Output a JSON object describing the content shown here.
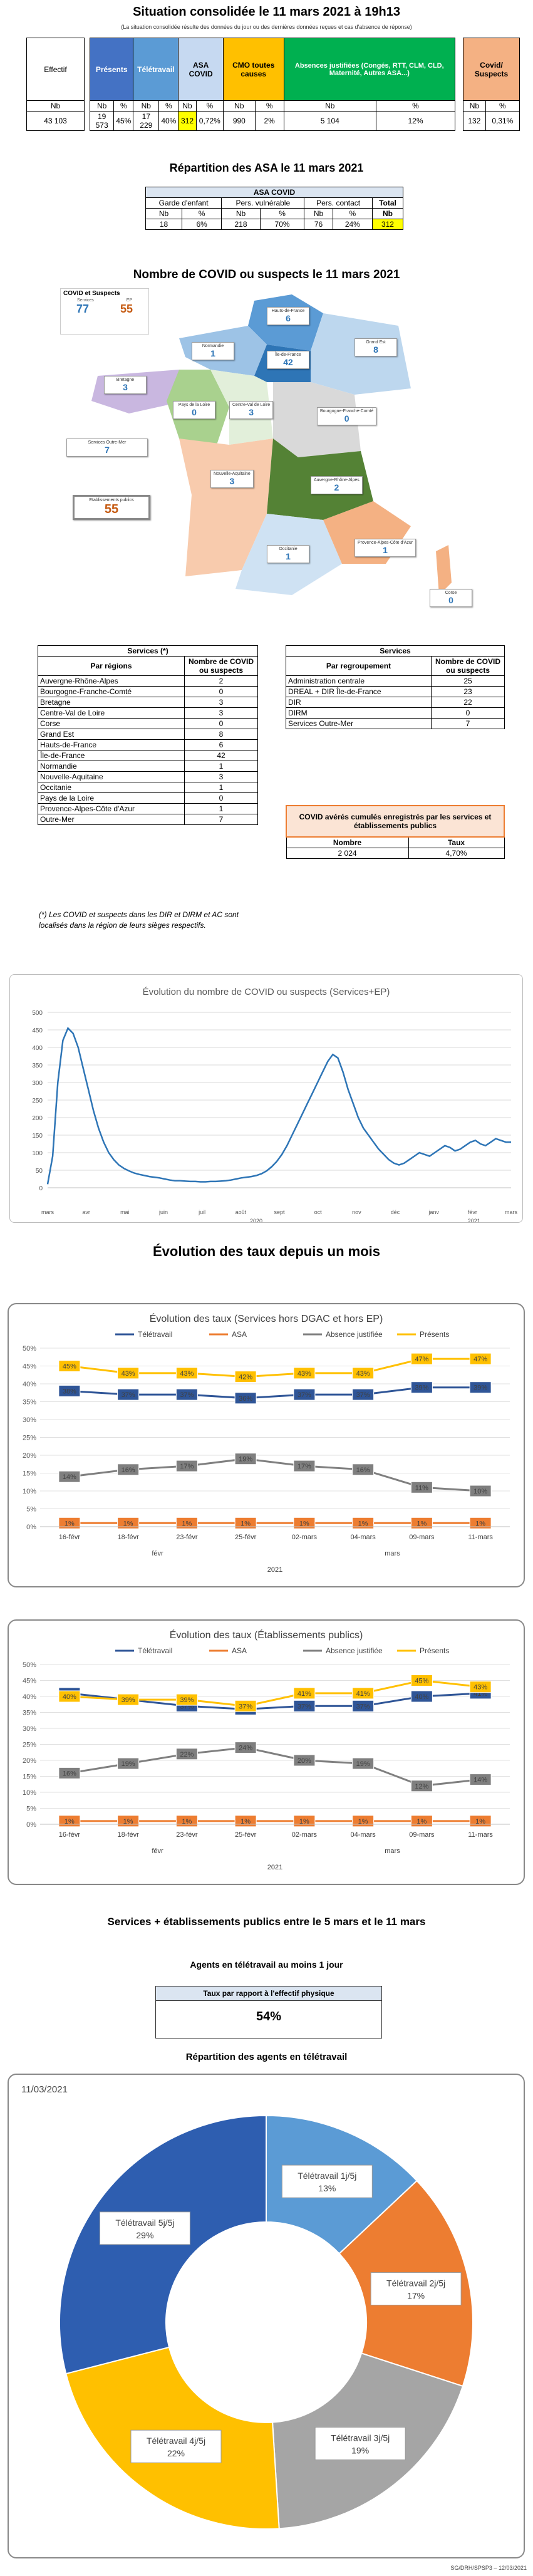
{
  "header": {
    "title": "Situation consolidée le 11 mars 2021 à 19h13",
    "note": "(La situation consolidée résulte des données du jour ou des dernières données reçues et cas d'absence de réponse)"
  },
  "summary": {
    "cols": [
      "Effectif",
      "Présents",
      "Télétravail",
      "ASA COVID",
      "CMO toutes causes",
      "Absences justifiées (Congés, RTT, CLM, CLD, Maternité, Autres ASA...)",
      "Covid/ Suspects"
    ],
    "sub": [
      "Nb",
      "Nb",
      "%",
      "Nb",
      "%",
      "Nb",
      "%",
      "Nb",
      "%",
      "Nb",
      "%",
      "Nb",
      "%"
    ],
    "vals": [
      "43 103",
      "19 573",
      "45%",
      "17 229",
      "40%",
      "312",
      "0,72%",
      "990",
      "2%",
      "5 104",
      "12%",
      "132",
      "0,31%"
    ],
    "colors": {
      "presents": "#4472c4",
      "teletravail": "#5b9bd5",
      "asa": "#c6d9f1",
      "cmo": "#ffc000",
      "absences": "#00b050",
      "covid": "#f4b183",
      "highlight": "#ffff00"
    }
  },
  "asa": {
    "title": "Répartition des ASA le 11 mars 2021",
    "header": "ASA COVID",
    "cols": [
      "Garde d'enfant",
      "Pers. vulnérable",
      "Pers. contact",
      "Total"
    ],
    "sub": [
      "Nb",
      "%",
      "Nb",
      "%",
      "Nb",
      "%",
      "Nb"
    ],
    "vals": [
      "18",
      "6%",
      "218",
      "70%",
      "76",
      "24%",
      "312"
    ]
  },
  "map": {
    "title": "Nombre de COVID ou suspects le 11 mars 2021",
    "legend_title": "COVID et Suspects",
    "legend_sub": [
      "Services",
      "EP"
    ],
    "legend_vals": [
      "77",
      "55"
    ],
    "regions": [
      {
        "name": "Hauts-de-France",
        "value": "6"
      },
      {
        "name": "Normandie",
        "value": "1"
      },
      {
        "name": "Île-de-France",
        "value": "42"
      },
      {
        "name": "Grand Est",
        "value": "8"
      },
      {
        "name": "Bretagne",
        "value": "3"
      },
      {
        "name": "Pays de la Loire",
        "value": "0"
      },
      {
        "name": "Centre-Val de Loire",
        "value": "3"
      },
      {
        "name": "Bourgogne-Franche-Comté",
        "value": "0"
      },
      {
        "name": "Nouvelle-Aquitaine",
        "value": "3"
      },
      {
        "name": "Auvergne-Rhône-Alpes",
        "value": "2"
      },
      {
        "name": "Occitanie",
        "value": "1"
      },
      {
        "name": "Provence-Alpes-Côte d'Azur",
        "value": "1"
      },
      {
        "name": "Corse",
        "value": "0"
      },
      {
        "name": "Services Outre-Mer",
        "value": "7"
      },
      {
        "name": "Etablissements publics",
        "value": "55"
      }
    ]
  },
  "services_regions": {
    "title": "Services (*)",
    "col1": "Par régions",
    "col2": "Nombre de COVID ou suspects",
    "rows": [
      [
        "Auvergne-Rhône-Alpes",
        "2"
      ],
      [
        "Bourgogne-Franche-Comté",
        "0"
      ],
      [
        "Bretagne",
        "3"
      ],
      [
        "Centre-Val de Loire",
        "3"
      ],
      [
        "Corse",
        "0"
      ],
      [
        "Grand Est",
        "8"
      ],
      [
        "Hauts-de-France",
        "6"
      ],
      [
        "Île-de-France",
        "42"
      ],
      [
        "Normandie",
        "1"
      ],
      [
        "Nouvelle-Aquitaine",
        "3"
      ],
      [
        "Occitanie",
        "1"
      ],
      [
        "Pays de la Loire",
        "0"
      ],
      [
        "Provence-Alpes-Côte d'Azur",
        "1"
      ],
      [
        "Outre-Mer",
        "7"
      ]
    ],
    "footnote": "(*) Les COVID et suspects dans les DIR et DIRM et AC sont localisés dans la région de leurs sièges respectifs."
  },
  "services_regroup": {
    "title": "Services",
    "col1": "Par regroupement",
    "col2": "Nombre de COVID ou suspects",
    "rows": [
      [
        "Administration centrale",
        "25"
      ],
      [
        "DREAL + DIR Île-de-France",
        "23"
      ],
      [
        "DIR",
        "22"
      ],
      [
        "DIRM",
        "0"
      ],
      [
        "Services Outre-Mer",
        "7"
      ]
    ]
  },
  "cumul": {
    "title": "COVID avérés cumulés enregistrés par les services et établissements publics",
    "cols": [
      "Nombre",
      "Taux"
    ],
    "vals": [
      "2 024",
      "4,70%"
    ]
  },
  "evolution_title": "Évolution des taux depuis un mois",
  "section_title": "Services + établissements publics entre le 5 mars et le 11 mars",
  "telework": {
    "title": "Agents en télétravail au moins 1 jour",
    "header": "Taux par rapport à l'effectif physique",
    "value": "54%"
  },
  "repartition_title": "Répartition des agents en télétravail",
  "footer": "SG/DRH/SPSP3 – 12/03/2021",
  "chart_data": [
    {
      "type": "line",
      "title": "Évolution du nombre de COVID ou suspects (Services+EP)",
      "ylim": [
        0,
        500
      ],
      "yticks": [
        0,
        50,
        100,
        150,
        200,
        250,
        300,
        350,
        400,
        450,
        500
      ],
      "month_labels": [
        "mars",
        "avr",
        "mai",
        "juin",
        "juil",
        "août",
        "sept",
        "oct",
        "nov",
        "déc",
        "janv",
        "févr",
        "mars"
      ],
      "year_labels": [
        "2020",
        "2021"
      ],
      "series": [
        {
          "values": [
            10,
            90,
            300,
            420,
            455,
            440,
            400,
            340,
            280,
            220,
            170,
            130,
            100,
            80,
            65,
            55,
            48,
            42,
            38,
            35,
            32,
            30,
            28,
            25,
            22,
            20,
            20,
            19,
            18,
            18,
            17,
            17,
            18,
            18,
            19,
            20,
            22,
            25,
            28,
            30,
            32,
            35,
            40,
            48,
            60,
            75,
            95,
            120,
            150,
            180,
            210,
            240,
            270,
            300,
            330,
            360,
            380,
            370,
            330,
            280,
            240,
            200,
            170,
            150,
            130,
            110,
            95,
            80,
            70,
            65,
            70,
            80,
            90,
            100,
            95,
            90,
            100,
            110,
            120,
            115,
            105,
            110,
            120,
            130,
            135,
            125,
            120,
            130,
            140,
            135,
            130,
            130
          ]
        }
      ]
    },
    {
      "type": "line",
      "title": "Évolution des taux (Services hors DGAC et hors EP)",
      "categories": [
        "16-févr",
        "18-févr",
        "23-févr",
        "25-févr",
        "02-mars",
        "04-mars",
        "09-mars",
        "11-mars"
      ],
      "group_labels": [
        "févr",
        "mars"
      ],
      "year_label": "2021",
      "ylim": [
        0,
        50
      ],
      "series": [
        {
          "name": "Télétravail",
          "color": "#2f5597",
          "values": [
            38,
            37,
            37,
            36,
            37,
            37,
            39,
            39
          ]
        },
        {
          "name": "ASA",
          "color": "#ed7d31",
          "values": [
            1,
            1,
            1,
            1,
            1,
            1,
            1,
            1
          ]
        },
        {
          "name": "Absence justifiée",
          "color": "#7f7f7f",
          "values": [
            14,
            16,
            17,
            19,
            17,
            16,
            11,
            10
          ]
        },
        {
          "name": "Présents",
          "color": "#ffc000",
          "values": [
            45,
            43,
            43,
            42,
            43,
            43,
            47,
            47
          ]
        }
      ]
    },
    {
      "type": "line",
      "title": "Évolution des taux (Établissements publics)",
      "categories": [
        "16-févr",
        "18-févr",
        "23-févr",
        "25-févr",
        "02-mars",
        "04-mars",
        "09-mars",
        "11-mars"
      ],
      "group_labels": [
        "févr",
        "mars"
      ],
      "year_label": "2021",
      "ylim": [
        0,
        50
      ],
      "series": [
        {
          "name": "Télétravail",
          "color": "#2f5597",
          "values": [
            41,
            39,
            37,
            36,
            37,
            37,
            40,
            41
          ]
        },
        {
          "name": "ASA",
          "color": "#ed7d31",
          "values": [
            1,
            1,
            1,
            1,
            1,
            1,
            1,
            1
          ]
        },
        {
          "name": "Absence justifiée",
          "color": "#7f7f7f",
          "values": [
            16,
            19,
            22,
            24,
            20,
            19,
            12,
            14
          ]
        },
        {
          "name": "Présents",
          "color": "#ffc000",
          "values": [
            40,
            39,
            39,
            37,
            41,
            41,
            45,
            43
          ]
        }
      ]
    },
    {
      "type": "pie",
      "title": "11/03/2021",
      "labels": [
        "Télétravail 1j/5j",
        "Télétravail 2j/5j",
        "Télétravail 3j/5j",
        "Télétravail 4j/5j",
        "Télétravail 5j/5j"
      ],
      "values": [
        13,
        17,
        19,
        22,
        29
      ],
      "colors": [
        "#5b9bd5",
        "#ed7d31",
        "#a5a5a5",
        "#ffc000",
        "#2e5eb0"
      ]
    }
  ]
}
